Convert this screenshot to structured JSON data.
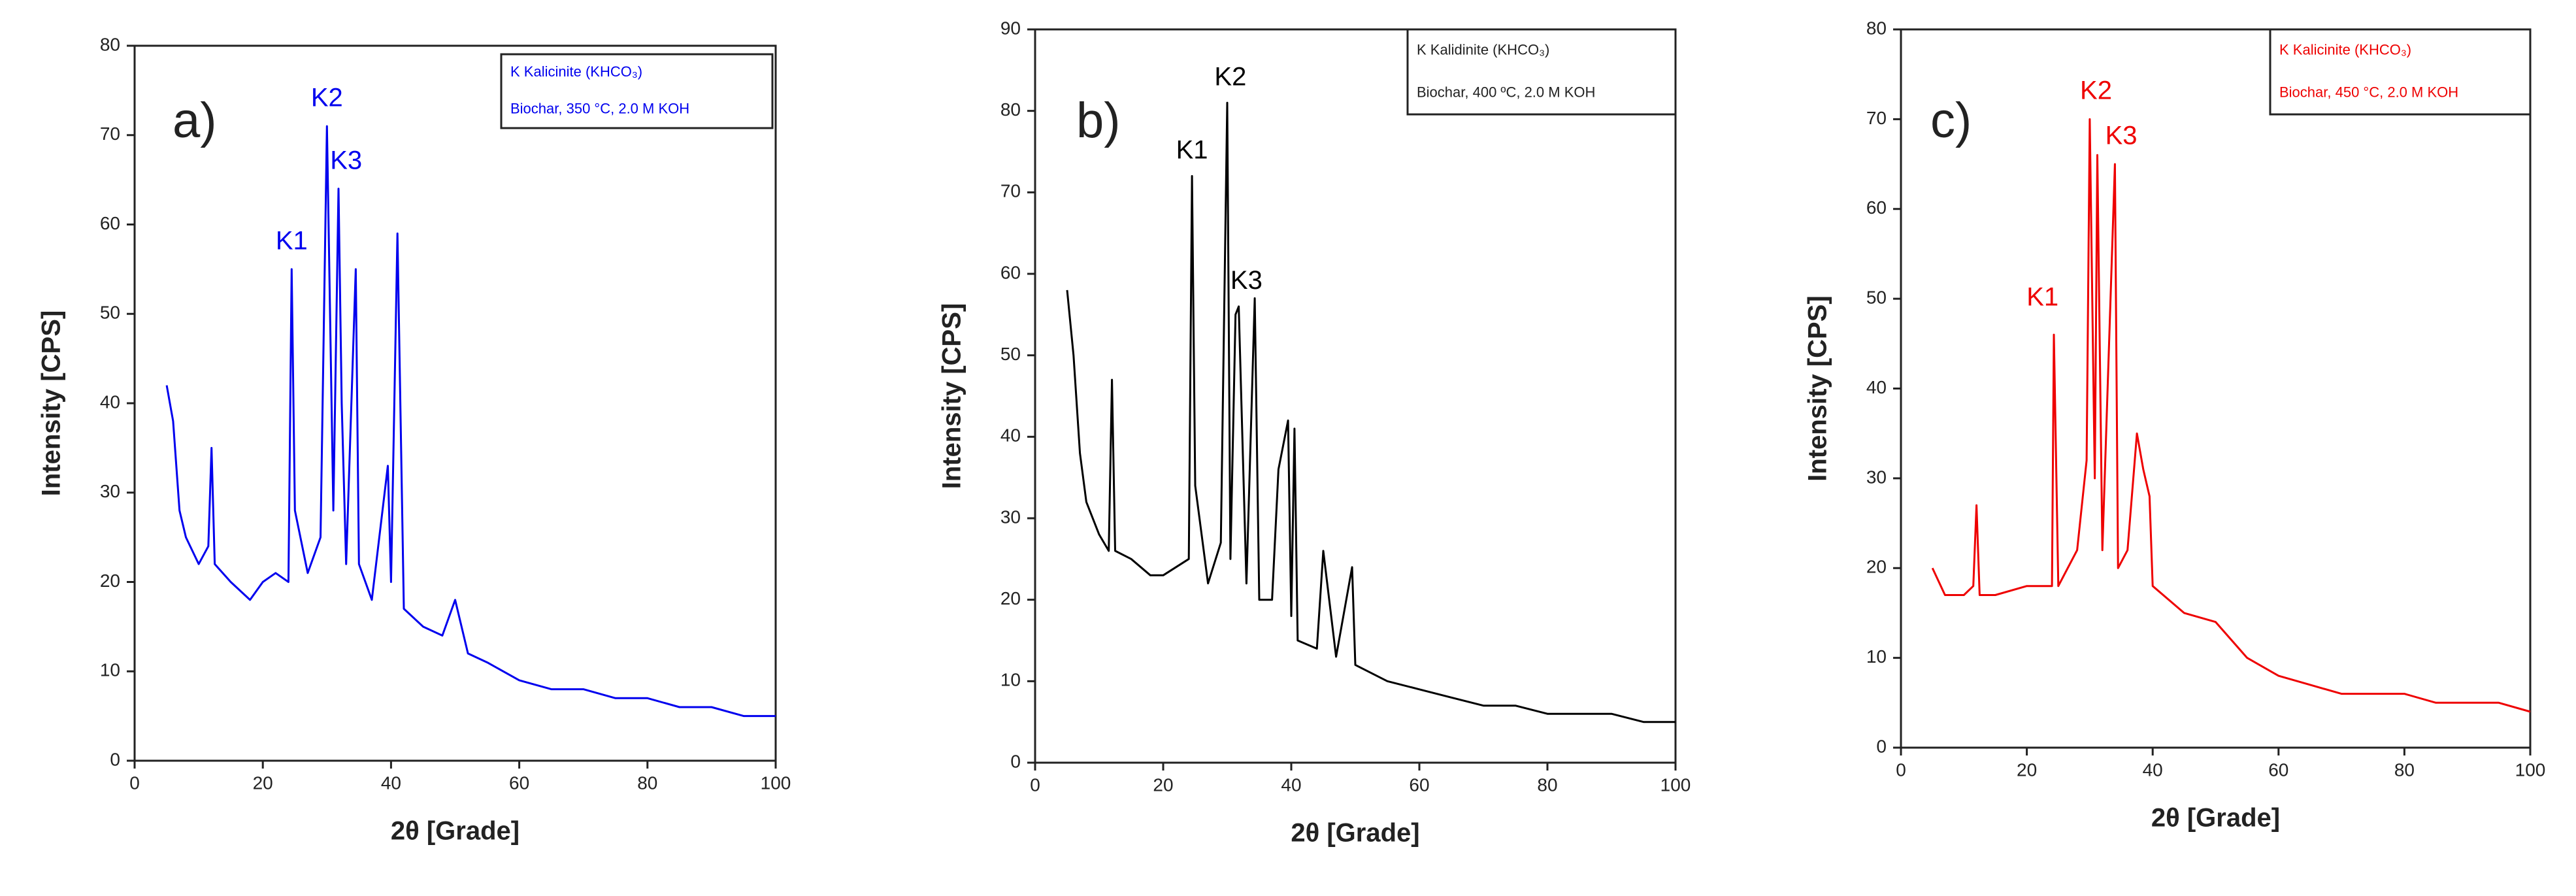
{
  "chart_data": [
    {
      "type": "line",
      "panel_label": "a)",
      "x_label": "2θ [Grade]",
      "y_label": "Intensity [CPS]",
      "legend": [
        "K Kalicinite (KHCO₃)",
        "Biochar, 350 °C, 2.0 M KOH"
      ],
      "xlim": [
        0,
        100
      ],
      "xticks": [
        0,
        20,
        40,
        60,
        80,
        100
      ],
      "ylim": [
        0,
        80
      ],
      "yticks": [
        0,
        10,
        20,
        30,
        40,
        50,
        60,
        70,
        80
      ],
      "x": [
        5,
        6,
        7,
        8,
        10,
        11.5,
        12,
        12.5,
        15,
        18,
        20,
        22,
        24,
        24.5,
        25,
        27,
        29,
        30,
        31,
        31.8,
        32.3,
        33,
        34.5,
        35,
        37,
        39.5,
        40,
        41,
        42,
        45,
        48,
        50,
        52,
        55,
        60,
        65,
        70,
        75,
        80,
        85,
        90,
        95,
        100
      ],
      "series": [
        {
          "color": "#0000ee",
          "values": [
            42,
            38,
            28,
            25,
            22,
            24,
            35,
            22,
            20,
            18,
            20,
            21,
            20,
            55,
            28,
            21,
            25,
            71,
            28,
            64,
            40,
            22,
            55,
            22,
            18,
            33,
            20,
            59,
            17,
            15,
            14,
            18,
            12,
            11,
            9,
            8,
            8,
            7,
            7,
            6,
            6,
            5,
            5
          ]
        }
      ],
      "annotations": [
        {
          "text": "K1",
          "x": 24.5,
          "y": 58
        },
        {
          "text": "K2",
          "x": 30,
          "y": 74
        },
        {
          "text": "K3",
          "x": 33,
          "y": 67
        }
      ]
    },
    {
      "type": "line",
      "panel_label": "b)",
      "x_label": "2θ [Grade]",
      "y_label": "Intensity [CPS]",
      "legend": [
        "K Kalidinite (KHCO₃)",
        "Biochar, 400 ºC, 2.0 M KOH"
      ],
      "xlim": [
        0,
        100
      ],
      "xticks": [
        0,
        20,
        40,
        60,
        80,
        100
      ],
      "ylim": [
        0,
        90
      ],
      "yticks": [
        0,
        10,
        20,
        30,
        40,
        50,
        60,
        70,
        80,
        90
      ],
      "x": [
        5,
        6,
        7,
        8,
        10,
        11.5,
        12,
        12.5,
        15,
        18,
        20,
        22,
        24,
        24.5,
        25,
        27,
        29,
        30,
        30.5,
        31.3,
        31.8,
        33,
        34.3,
        35,
        37,
        38,
        39.5,
        40,
        40.5,
        41,
        44,
        45,
        47,
        49.5,
        50,
        55,
        60,
        65,
        70,
        75,
        80,
        85,
        90,
        95,
        100
      ],
      "series": [
        {
          "color": "#000000",
          "values": [
            58,
            50,
            38,
            32,
            28,
            26,
            47,
            26,
            25,
            23,
            23,
            24,
            25,
            72,
            34,
            22,
            27,
            81,
            25,
            55,
            56,
            22,
            57,
            20,
            20,
            36,
            42,
            18,
            41,
            15,
            14,
            26,
            13,
            24,
            12,
            10,
            9,
            8,
            7,
            7,
            6,
            6,
            6,
            5,
            5
          ]
        }
      ],
      "annotations": [
        {
          "text": "K1",
          "x": 24.5,
          "y": 75
        },
        {
          "text": "K2",
          "x": 30.5,
          "y": 84
        },
        {
          "text": "K3",
          "x": 33,
          "y": 59
        }
      ]
    },
    {
      "type": "line",
      "panel_label": "c)",
      "x_label": "2θ [Grade]",
      "y_label": "Intensity [CPS]",
      "legend": [
        "K Kalicinite (KHCO₃)",
        "Biochar, 450 °C, 2.0 M KOH"
      ],
      "xlim": [
        0,
        100
      ],
      "xticks": [
        0,
        20,
        40,
        60,
        80,
        100
      ],
      "ylim": [
        0,
        80
      ],
      "yticks": [
        0,
        10,
        20,
        30,
        40,
        50,
        60,
        70,
        80
      ],
      "x": [
        5,
        7,
        10,
        11.5,
        12,
        12.5,
        15,
        20,
        22,
        24,
        24.3,
        25,
        28,
        29.5,
        30,
        30.8,
        31.2,
        32,
        34,
        34.5,
        36,
        37.5,
        38.5,
        39.5,
        40,
        45,
        50,
        55,
        60,
        65,
        70,
        75,
        80,
        85,
        90,
        95,
        100
      ],
      "series": [
        {
          "color": "#ee0000",
          "values": [
            20,
            17,
            17,
            18,
            27,
            17,
            17,
            18,
            18,
            18,
            46,
            18,
            22,
            32,
            70,
            30,
            66,
            22,
            65,
            20,
            22,
            35,
            31,
            28,
            18,
            15,
            14,
            10,
            8,
            7,
            6,
            6,
            6,
            5,
            5,
            5,
            4
          ]
        }
      ],
      "annotations": [
        {
          "text": "K1",
          "x": 22.5,
          "y": 50
        },
        {
          "text": "K2",
          "x": 31,
          "y": 73
        },
        {
          "text": "K3",
          "x": 35,
          "y": 68
        }
      ]
    }
  ]
}
